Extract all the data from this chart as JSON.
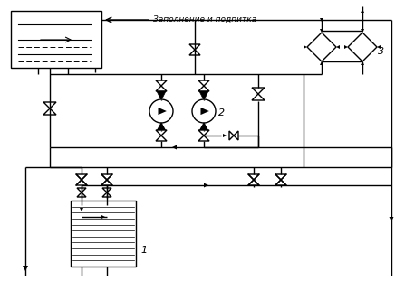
{
  "bg_color": "#ffffff",
  "line_color": "#000000",
  "label_zapolnenie": "Заполнение и подпитка",
  "label_1": "1",
  "label_2": "2",
  "label_3": "3",
  "figsize": [
    4.47,
    3.11
  ],
  "dpi": 100
}
